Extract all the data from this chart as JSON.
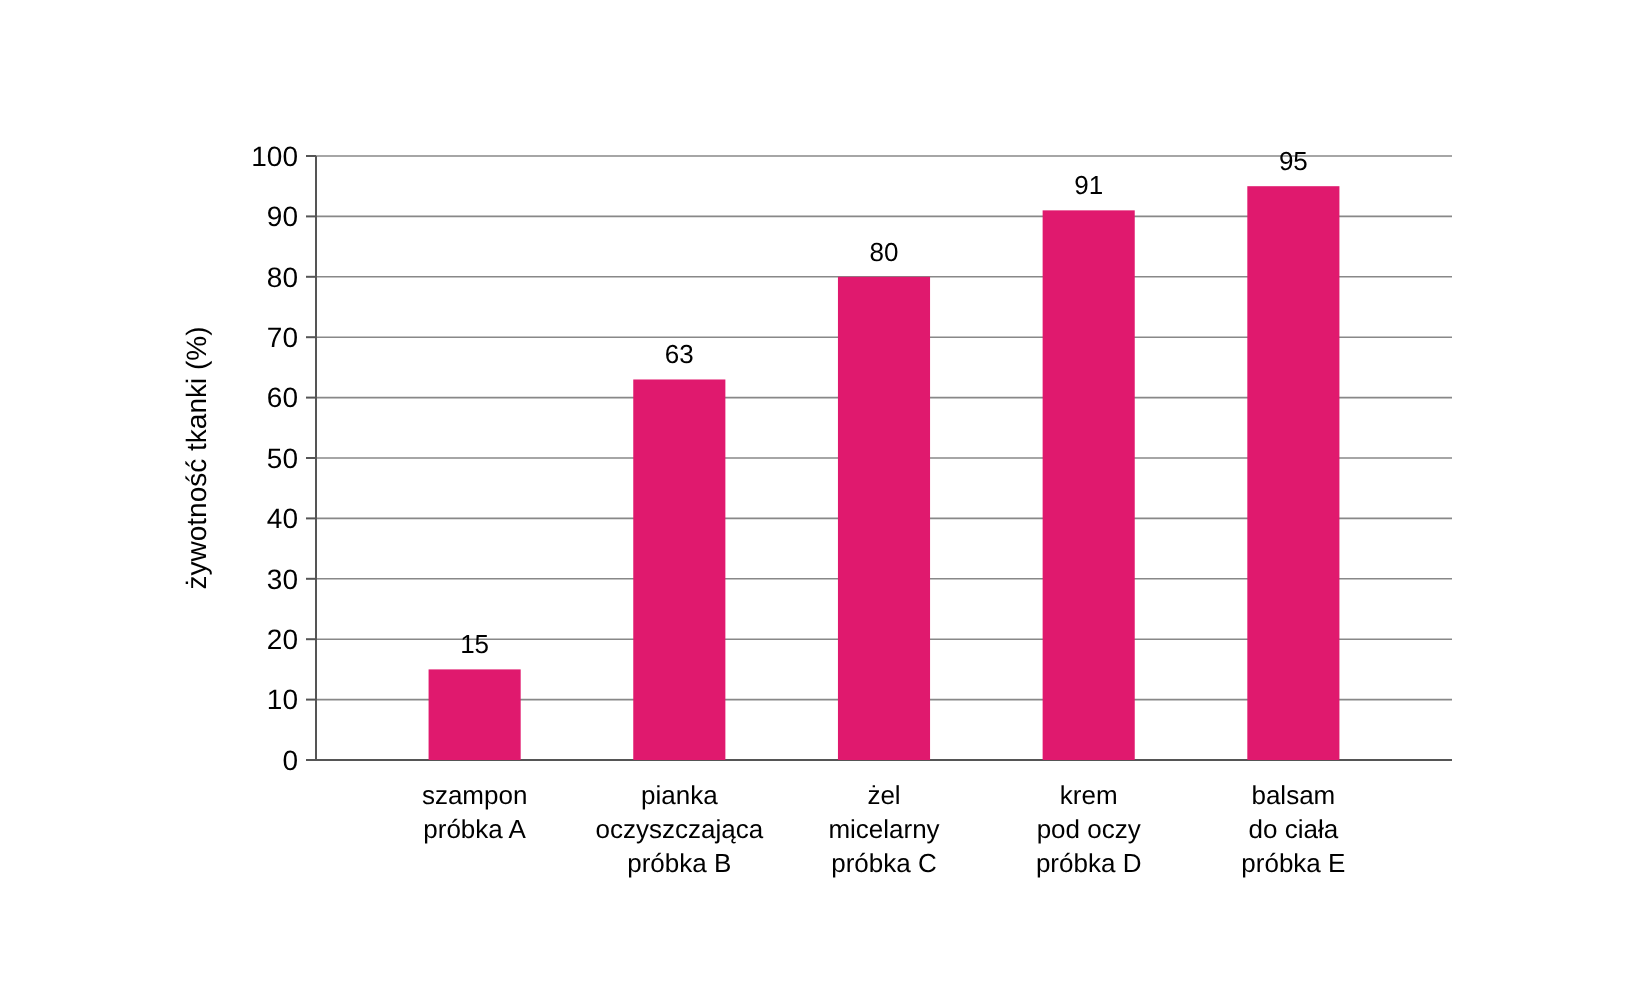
{
  "chart_data": {
    "type": "bar",
    "ylabel": "żywotność tkanki (%)",
    "categories": [
      "szampon\npróbka A",
      "pianka\noczyszczająca\npróbka B",
      "żel\nmicelarny\npróbka C",
      "krem\npod oczy\npróbka D",
      "balsam\ndo ciała\npróbka E"
    ],
    "values": [
      15,
      63,
      80,
      91,
      95
    ],
    "color": "#e0196e",
    "ylim": [
      0,
      100
    ],
    "yticks": [
      0,
      10,
      20,
      30,
      40,
      50,
      60,
      70,
      80,
      90,
      100
    ],
    "grid": "y",
    "data_labels": true
  }
}
